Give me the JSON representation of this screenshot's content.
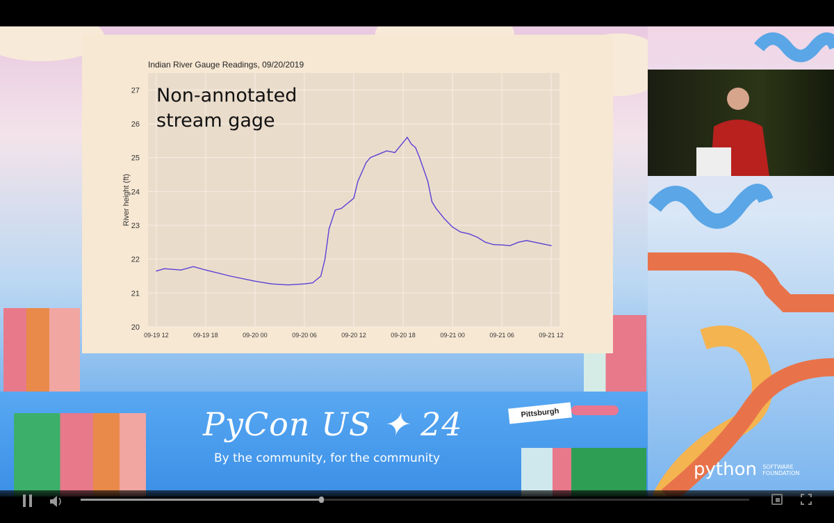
{
  "slide": {
    "overlay_title_line1": "Non-annotated",
    "overlay_title_line2": "stream gage"
  },
  "banner": {
    "event": "PyCon US ✦ 24",
    "tagline": "By the community, for the community",
    "city_flag": "Pittsburgh",
    "sponsor": "python",
    "sponsor_sub1": "SOFTWARE",
    "sponsor_sub2": "FOUNDATION"
  },
  "player": {
    "progress_fraction": 0.36,
    "state": "playing",
    "icons": [
      "pause-icon",
      "volume-icon",
      "picture-in-picture-icon",
      "fullscreen-icon"
    ]
  },
  "chart_data": {
    "type": "line",
    "title": "Indian River Gauge Readings, 09/20/2019",
    "xlabel": "",
    "ylabel": "River height (ft)",
    "ylim": [
      20,
      27.5
    ],
    "yticks": [
      "20",
      "21",
      "22",
      "23",
      "24",
      "25",
      "26",
      "27"
    ],
    "xticks": [
      "09-19 12",
      "09-19 18",
      "09-20 00",
      "09-20 06",
      "09-20 12",
      "09-20 18",
      "09-21 00",
      "09-21 06",
      "09-21 12"
    ],
    "xlim": [
      "2019-09-19 11:00",
      "2019-09-21 13:00"
    ],
    "grid": true,
    "line_color": "#5b3fd6",
    "background": "#eadccb",
    "x": [
      "2019-09-19 12:00",
      "2019-09-19 13:00",
      "2019-09-19 15:00",
      "2019-09-19 16:30",
      "2019-09-19 18:00",
      "2019-09-19 21:00",
      "2019-09-20 00:00",
      "2019-09-20 02:00",
      "2019-09-20 04:00",
      "2019-09-20 06:00",
      "2019-09-20 07:00",
      "2019-09-20 08:00",
      "2019-09-20 08:30",
      "2019-09-20 09:00",
      "2019-09-20 09:45",
      "2019-09-20 10:30",
      "2019-09-20 11:30",
      "2019-09-20 12:00",
      "2019-09-20 12:30",
      "2019-09-20 13:30",
      "2019-09-20 14:00",
      "2019-09-20 15:00",
      "2019-09-20 16:00",
      "2019-09-20 17:00",
      "2019-09-20 17:30",
      "2019-09-20 18:00",
      "2019-09-20 18:30",
      "2019-09-20 19:00",
      "2019-09-20 19:30",
      "2019-09-20 20:00",
      "2019-09-20 21:00",
      "2019-09-20 21:30",
      "2019-09-20 22:00",
      "2019-09-20 23:00",
      "2019-09-21 00:00",
      "2019-09-21 01:00",
      "2019-09-21 02:00",
      "2019-09-21 03:00",
      "2019-09-21 04:00",
      "2019-09-21 05:00",
      "2019-09-21 06:00",
      "2019-09-21 07:00",
      "2019-09-21 08:00",
      "2019-09-21 09:00",
      "2019-09-21 10:00",
      "2019-09-21 11:00",
      "2019-09-21 12:00"
    ],
    "y": [
      21.65,
      21.72,
      21.68,
      21.78,
      21.68,
      21.5,
      21.35,
      21.27,
      21.24,
      21.27,
      21.3,
      21.5,
      22.0,
      22.9,
      23.45,
      23.5,
      23.7,
      23.8,
      24.3,
      24.85,
      25.0,
      25.1,
      25.2,
      25.15,
      25.3,
      25.45,
      25.6,
      25.4,
      25.3,
      25.0,
      24.3,
      23.7,
      23.5,
      23.2,
      22.95,
      22.8,
      22.75,
      22.65,
      22.5,
      22.43,
      22.42,
      22.4,
      22.5,
      22.55,
      22.5,
      22.45,
      22.4
    ]
  }
}
